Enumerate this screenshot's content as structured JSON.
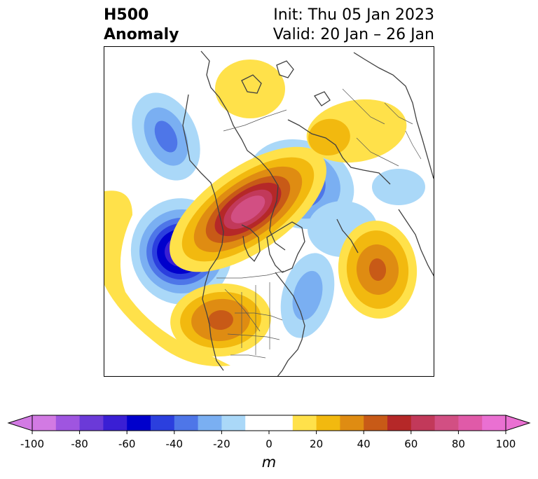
{
  "title": {
    "left_line1": "H500",
    "left_line2": "Anomaly",
    "right_line1": "Init: Thu 05 Jan 2023",
    "right_line2": "Valid: 20 Jan – 26 Jan"
  },
  "colorbar": {
    "unit_label": "m",
    "ticks": [
      "-100",
      "-80",
      "-60",
      "-40",
      "-20",
      "0",
      "20",
      "40",
      "60",
      "80",
      "100"
    ],
    "neg_colors": [
      "#d27ae3",
      "#9f55e0",
      "#6b3ad8",
      "#3a1fd4",
      "#0000cc",
      "#2b3fde",
      "#4e76e8",
      "#7aaff2",
      "#aad8f8"
    ],
    "neutral_color": "#ffffff",
    "pos_colors": [
      "#ffe14a",
      "#f2b90f",
      "#df8c12",
      "#c85a17",
      "#b52828",
      "#c2395a",
      "#d24f83",
      "#e05aa8",
      "#ea70d2"
    ]
  }
}
